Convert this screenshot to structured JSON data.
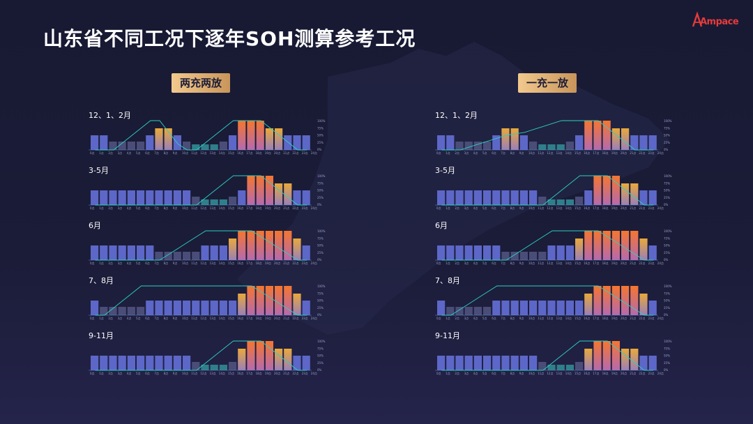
{
  "page": {
    "title": "山东省不同工况下逐年SOH测算参考工况",
    "logo": "Ampace",
    "colors": {
      "background": "#1b1c38",
      "accent_gold": "#e2b278",
      "bar_discharge": "#f07a3a",
      "bar_charge": "#e7a33a",
      "bar_normal": "#5d67c8",
      "bar_low": "#4a4d78",
      "bar_valley": "#2f7f8a",
      "line_soc": "#2bd1c0"
    }
  },
  "modes": [
    {
      "id": "left",
      "label": "两充两放"
    },
    {
      "id": "right",
      "label": "一充一放"
    }
  ],
  "x_ticks": [
    "0点",
    "1点",
    "2点",
    "3点",
    "4点",
    "5点",
    "6点",
    "7点",
    "8点",
    "9点",
    "10点",
    "11点",
    "12点",
    "13点",
    "14点",
    "15点",
    "16点",
    "17点",
    "18点",
    "19点",
    "20点",
    "21点",
    "22点",
    "23点",
    "24点"
  ],
  "y_right_ticks": [
    "100%",
    "75%",
    "50%",
    "25%",
    "0%"
  ],
  "chart_data": [
    {
      "type": "bar",
      "mode": "两充两放",
      "title": "12、1、2月",
      "categories": [
        "0点",
        "1点",
        "2点",
        "3点",
        "4点",
        "5点",
        "6点",
        "7点",
        "8点",
        "9点",
        "10点",
        "11点",
        "12点",
        "13点",
        "14点",
        "15点",
        "16点",
        "17点",
        "18点",
        "19点",
        "20点",
        "21点",
        "22点",
        "23点"
      ],
      "price_level": [
        3,
        3,
        1,
        1,
        1,
        1,
        3,
        4,
        4,
        3,
        1,
        0,
        0,
        0,
        1,
        3,
        5,
        5,
        5,
        4,
        4,
        3,
        3,
        3
      ],
      "soc_line": [
        0,
        0,
        0,
        0.25,
        0.5,
        0.75,
        1,
        1,
        0.6,
        0.2,
        0,
        0,
        0.25,
        0.5,
        0.75,
        1,
        1,
        1,
        1,
        0.75,
        0.5,
        0.25,
        0,
        0
      ]
    },
    {
      "type": "bar",
      "mode": "两充两放",
      "title": "3-5月",
      "categories": [
        "0点",
        "1点",
        "2点",
        "3点",
        "4点",
        "5点",
        "6点",
        "7点",
        "8点",
        "9点",
        "10点",
        "11点",
        "12点",
        "13点",
        "14点",
        "15点",
        "16点",
        "17点",
        "18点",
        "19点",
        "20点",
        "21点",
        "22点",
        "23点"
      ],
      "price_level": [
        3,
        3,
        3,
        3,
        3,
        3,
        3,
        3,
        3,
        3,
        3,
        1,
        0,
        0,
        0,
        1,
        3,
        5,
        5,
        5,
        4,
        4,
        3,
        3
      ],
      "soc_line": [
        0,
        0,
        0,
        0,
        0,
        0,
        0,
        0,
        0,
        0,
        0,
        0,
        0.25,
        0.5,
        0.75,
        1,
        1,
        1,
        1,
        0.75,
        0.5,
        0.25,
        0,
        0
      ]
    },
    {
      "type": "bar",
      "mode": "两充两放",
      "title": "6月",
      "categories": [
        "0点",
        "1点",
        "2点",
        "3点",
        "4点",
        "5点",
        "6点",
        "7点",
        "8点",
        "9点",
        "10点",
        "11点",
        "12点",
        "13点",
        "14点",
        "15点",
        "16点",
        "17点",
        "18点",
        "19点",
        "20点",
        "21点",
        "22点",
        "23点"
      ],
      "price_level": [
        3,
        3,
        3,
        3,
        3,
        3,
        3,
        1,
        1,
        1,
        1,
        1,
        3,
        3,
        3,
        4,
        5,
        5,
        5,
        5,
        5,
        5,
        4,
        3
      ],
      "soc_line": [
        0,
        0,
        0,
        0,
        0,
        0,
        0,
        0,
        0.2,
        0.4,
        0.6,
        0.8,
        1,
        1,
        1,
        1,
        1,
        1,
        0.8,
        0.6,
        0.4,
        0.2,
        0,
        0
      ]
    },
    {
      "type": "bar",
      "mode": "两充两放",
      "title": "7、8月",
      "categories": [
        "0点",
        "1点",
        "2点",
        "3点",
        "4点",
        "5点",
        "6点",
        "7点",
        "8点",
        "9点",
        "10点",
        "11点",
        "12点",
        "13点",
        "14点",
        "15点",
        "16点",
        "17点",
        "18点",
        "19点",
        "20点",
        "21点",
        "22点",
        "23点"
      ],
      "price_level": [
        3,
        1,
        1,
        1,
        1,
        1,
        3,
        3,
        3,
        3,
        3,
        3,
        3,
        3,
        3,
        3,
        4,
        5,
        5,
        5,
        5,
        5,
        4,
        3
      ],
      "soc_line": [
        0,
        0,
        0.25,
        0.5,
        0.75,
        1,
        1,
        1,
        1,
        1,
        1,
        1,
        1,
        1,
        1,
        1,
        1,
        1,
        0.8,
        0.6,
        0.4,
        0.2,
        0,
        0
      ]
    },
    {
      "type": "bar",
      "mode": "两充两放",
      "title": "9-11月",
      "categories": [
        "0点",
        "1点",
        "2点",
        "3点",
        "4点",
        "5点",
        "6点",
        "7点",
        "8点",
        "9点",
        "10点",
        "11点",
        "12点",
        "13点",
        "14点",
        "15点",
        "16点",
        "17点",
        "18点",
        "19点",
        "20点",
        "21点",
        "22点",
        "23点"
      ],
      "price_level": [
        3,
        3,
        3,
        3,
        3,
        3,
        3,
        3,
        3,
        3,
        3,
        1,
        0,
        0,
        0,
        1,
        4,
        5,
        5,
        5,
        4,
        4,
        3,
        3
      ],
      "soc_line": [
        0,
        0,
        0,
        0,
        0,
        0,
        0,
        0,
        0,
        0,
        0,
        0,
        0.25,
        0.5,
        0.75,
        1,
        1,
        1,
        1,
        0.75,
        0.5,
        0.25,
        0,
        0
      ]
    },
    {
      "type": "bar",
      "mode": "一充一放",
      "title": "12、1、2月",
      "categories": [
        "0点",
        "1点",
        "2点",
        "3点",
        "4点",
        "5点",
        "6点",
        "7点",
        "8点",
        "9点",
        "10点",
        "11点",
        "12点",
        "13点",
        "14点",
        "15点",
        "16点",
        "17点",
        "18点",
        "19点",
        "20点",
        "21点",
        "22点",
        "23点"
      ],
      "price_level": [
        3,
        3,
        1,
        1,
        1,
        1,
        3,
        4,
        4,
        3,
        1,
        0,
        0,
        0,
        1,
        3,
        5,
        5,
        5,
        4,
        4,
        3,
        3,
        3
      ],
      "soc_line": [
        0,
        0,
        0,
        0.1,
        0.2,
        0.3,
        0.4,
        0.5,
        0.55,
        0.6,
        0.7,
        0.8,
        0.9,
        1,
        1,
        1,
        1,
        1,
        0.75,
        0.5,
        0.25,
        0,
        0,
        0
      ]
    },
    {
      "type": "bar",
      "mode": "一充一放",
      "title": "3-5月",
      "categories": [
        "0点",
        "1点",
        "2点",
        "3点",
        "4点",
        "5点",
        "6点",
        "7点",
        "8点",
        "9点",
        "10点",
        "11点",
        "12点",
        "13点",
        "14点",
        "15点",
        "16点",
        "17点",
        "18点",
        "19点",
        "20点",
        "21点",
        "22点",
        "23点"
      ],
      "price_level": [
        3,
        3,
        3,
        3,
        3,
        3,
        3,
        3,
        3,
        3,
        3,
        1,
        0,
        0,
        0,
        1,
        3,
        5,
        5,
        5,
        4,
        4,
        3,
        3
      ],
      "soc_line": [
        0,
        0,
        0,
        0,
        0,
        0,
        0,
        0,
        0,
        0,
        0,
        0,
        0.25,
        0.5,
        0.75,
        1,
        1,
        1,
        1,
        0.75,
        0.5,
        0.25,
        0,
        0
      ]
    },
    {
      "type": "bar",
      "mode": "一充一放",
      "title": "6月",
      "categories": [
        "0点",
        "1点",
        "2点",
        "3点",
        "4点",
        "5点",
        "6点",
        "7点",
        "8点",
        "9点",
        "10点",
        "11点",
        "12点",
        "13点",
        "14点",
        "15点",
        "16点",
        "17点",
        "18点",
        "19点",
        "20点",
        "21点",
        "22点",
        "23点"
      ],
      "price_level": [
        3,
        3,
        3,
        3,
        3,
        3,
        3,
        1,
        1,
        1,
        1,
        1,
        3,
        3,
        3,
        4,
        5,
        5,
        5,
        5,
        5,
        5,
        4,
        3
      ],
      "soc_line": [
        0,
        0,
        0,
        0,
        0,
        0,
        0,
        0,
        0.2,
        0.4,
        0.6,
        0.8,
        1,
        1,
        1,
        1,
        1,
        1,
        0.8,
        0.6,
        0.4,
        0.2,
        0,
        0
      ]
    },
    {
      "type": "bar",
      "mode": "一充一放",
      "title": "7、8月",
      "categories": [
        "0点",
        "1点",
        "2点",
        "3点",
        "4点",
        "5点",
        "6点",
        "7点",
        "8点",
        "9点",
        "10点",
        "11点",
        "12点",
        "13点",
        "14点",
        "15点",
        "16点",
        "17点",
        "18点",
        "19点",
        "20点",
        "21点",
        "22点",
        "23点"
      ],
      "price_level": [
        3,
        1,
        1,
        1,
        1,
        1,
        3,
        3,
        3,
        3,
        3,
        3,
        3,
        3,
        3,
        3,
        4,
        5,
        5,
        5,
        5,
        5,
        4,
        3
      ],
      "soc_line": [
        0,
        0,
        0.2,
        0.4,
        0.6,
        0.8,
        1,
        1,
        1,
        1,
        1,
        1,
        1,
        1,
        1,
        1,
        1,
        1,
        0.8,
        0.6,
        0.4,
        0.2,
        0,
        0
      ]
    },
    {
      "type": "bar",
      "mode": "一充一放",
      "title": "9-11月",
      "categories": [
        "0点",
        "1点",
        "2点",
        "3点",
        "4点",
        "5点",
        "6点",
        "7点",
        "8点",
        "9点",
        "10点",
        "11点",
        "12点",
        "13点",
        "14点",
        "15点",
        "16点",
        "17点",
        "18点",
        "19点",
        "20点",
        "21点",
        "22点",
        "23点"
      ],
      "price_level": [
        3,
        3,
        3,
        3,
        3,
        3,
        3,
        3,
        3,
        3,
        3,
        1,
        0,
        0,
        0,
        1,
        4,
        5,
        5,
        5,
        4,
        4,
        3,
        3
      ],
      "soc_line": [
        0,
        0,
        0,
        0,
        0,
        0,
        0,
        0,
        0,
        0,
        0,
        0,
        0.25,
        0.5,
        0.75,
        1,
        1,
        1,
        1,
        0.75,
        0.5,
        0.25,
        0,
        0
      ]
    }
  ]
}
